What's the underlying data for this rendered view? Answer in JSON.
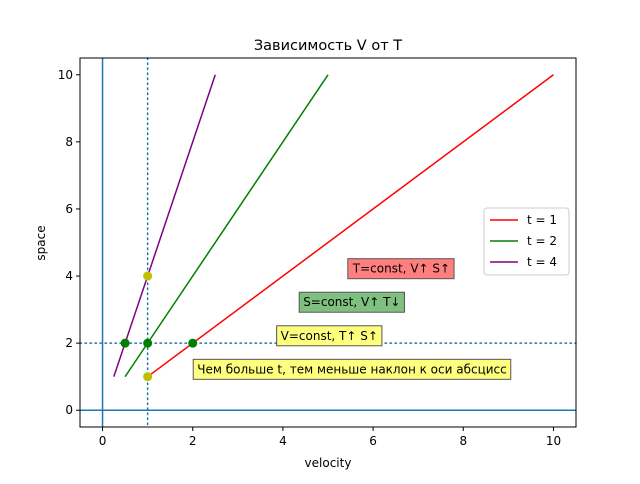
{
  "chart_data": {
    "type": "line",
    "title": "Зависимость V от T",
    "xlabel": "velocity",
    "ylabel": "space",
    "xlim": [
      -0.5,
      10.5
    ],
    "ylim": [
      -0.5,
      10.5
    ],
    "x_ticks": [
      0,
      2,
      4,
      6,
      8,
      10
    ],
    "y_ticks": [
      0,
      2,
      4,
      6,
      8,
      10
    ],
    "x_tick_labels": [
      "0",
      "2",
      "4",
      "6",
      "8",
      "10"
    ],
    "y_tick_labels": [
      "0",
      "2",
      "4",
      "6",
      "8",
      "10"
    ],
    "grid": false,
    "legend_position": "right",
    "series": [
      {
        "name": "t = 1",
        "color": "#ff0000",
        "x": [
          1,
          10
        ],
        "y": [
          1,
          10
        ]
      },
      {
        "name": "t = 2",
        "color": "#008000",
        "x": [
          0.5,
          5
        ],
        "y": [
          1,
          10
        ]
      },
      {
        "name": "t = 4",
        "color": "#800080",
        "x": [
          0.25,
          2.5
        ],
        "y": [
          1,
          10
        ]
      }
    ],
    "reference_lines": [
      {
        "orientation": "vertical",
        "value": 0,
        "style": "solid",
        "color": "#1f77b4"
      },
      {
        "orientation": "horizontal",
        "value": 0,
        "style": "solid",
        "color": "#1f77b4"
      },
      {
        "orientation": "vertical",
        "value": 1,
        "style": "dotted",
        "color": "#1f77b4"
      },
      {
        "orientation": "horizontal",
        "value": 2,
        "style": "dotted",
        "color": "#1f77b4"
      }
    ],
    "points": [
      {
        "x": 0.5,
        "y": 2,
        "color": "#008000"
      },
      {
        "x": 1,
        "y": 2,
        "color": "#008000"
      },
      {
        "x": 2,
        "y": 2,
        "color": "#008000"
      },
      {
        "x": 1,
        "y": 4,
        "color": "#bfbf00"
      },
      {
        "x": 1,
        "y": 1,
        "color": "#bfbf00"
      }
    ],
    "annotations": [
      {
        "text": "T=const, V↑ S↑",
        "x": 5.55,
        "y": 4.1,
        "bg": "#ff7f7f"
      },
      {
        "text": "S=const, V↑ T↓",
        "x": 4.45,
        "y": 3.1,
        "bg": "#7fbf7f"
      },
      {
        "text": "V=const, T↑ S↑",
        "x": 3.95,
        "y": 2.1,
        "bg": "#ffff7f"
      },
      {
        "text": "Чем больше t, тем меньше наклон к оси абсцисс",
        "x": 2.1,
        "y": 1.1,
        "bg": "#ffff7f"
      }
    ]
  }
}
